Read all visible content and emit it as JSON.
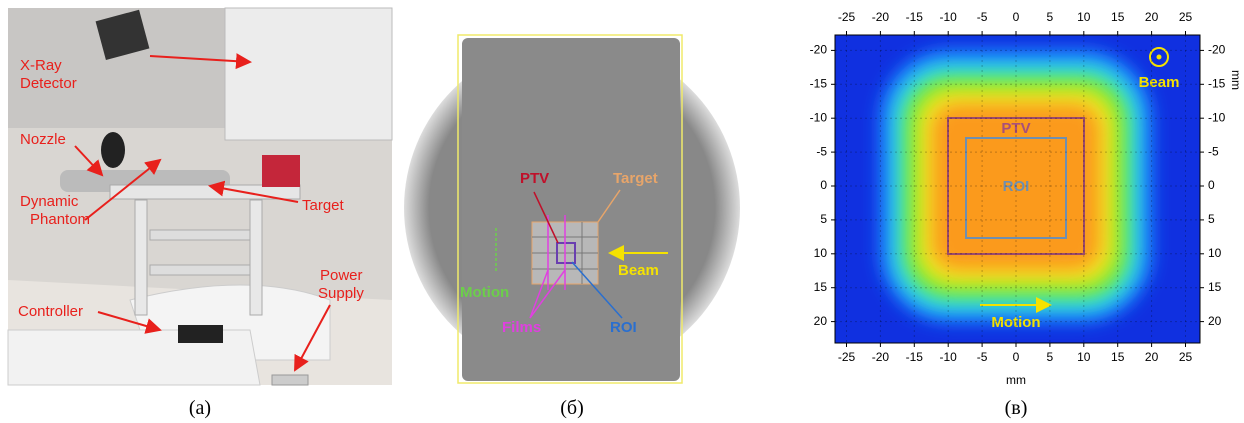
{
  "panel_a": {
    "caption": "(a)",
    "labels": {
      "detector": [
        "X-Ray",
        "Detector"
      ],
      "nozzle": "Nozzle",
      "phantom": [
        "Dynamic",
        "Phantom"
      ],
      "target": "Target",
      "controller": "Controller",
      "power": [
        "Power",
        "Supply"
      ]
    }
  },
  "panel_b": {
    "caption": "(б)",
    "labels": {
      "ptv": "PTV",
      "target": "Target",
      "beam": "Beam",
      "motion": "Motion",
      "films": "Films",
      "roi": "ROI"
    }
  },
  "panel_c": {
    "caption": "(в)",
    "x_ticks": [
      -25,
      -20,
      -15,
      -10,
      -5,
      0,
      5,
      10,
      15,
      20,
      25
    ],
    "y_ticks": [
      -20,
      -15,
      -10,
      -5,
      0,
      5,
      10,
      15,
      20
    ],
    "x_axis_label": "mm",
    "y_axis_label": "mm",
    "labels": {
      "ptv": "PTV",
      "roi": "ROI",
      "beam": "Beam",
      "motion": "Motion"
    }
  }
}
